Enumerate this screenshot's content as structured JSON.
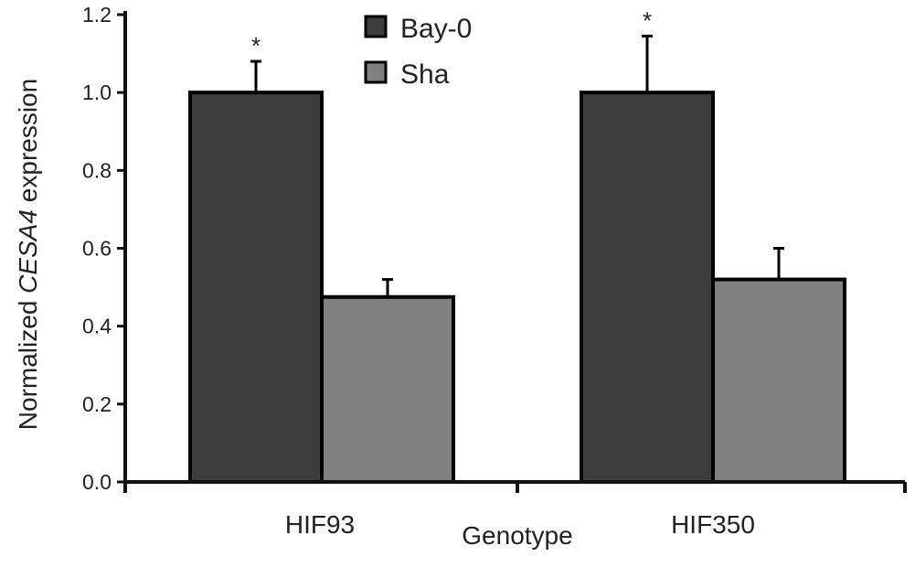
{
  "chart_data": {
    "type": "bar",
    "xlabel": "Genotype",
    "ylabel": {
      "prefix": "Normalized ",
      "gene": "CESA4",
      "suffix": " expression"
    },
    "ylim": [
      0,
      1.2
    ],
    "yticks": [
      0.0,
      0.2,
      0.4,
      0.6,
      0.8,
      1.0,
      1.2
    ],
    "ytick_labels": [
      "0.0",
      "0.2",
      "0.4",
      "0.6",
      "0.8",
      "1.0",
      "1.2"
    ],
    "categories": [
      "HIF93",
      "HIF350"
    ],
    "series": [
      {
        "name": "Bay-0",
        "values": [
          1.0,
          1.0
        ],
        "errors": [
          0.08,
          0.145
        ],
        "significance": [
          "*",
          "*"
        ]
      },
      {
        "name": "Sha",
        "values": [
          0.475,
          0.52
        ],
        "errors": [
          0.045,
          0.08
        ],
        "significance": [
          "",
          ""
        ]
      }
    ],
    "legend_position": "top",
    "grid": false
  },
  "colors": {
    "Bay-0": "#3c3c3c",
    "Sha": "#808080",
    "axis": "#111111",
    "text": "#222222"
  }
}
